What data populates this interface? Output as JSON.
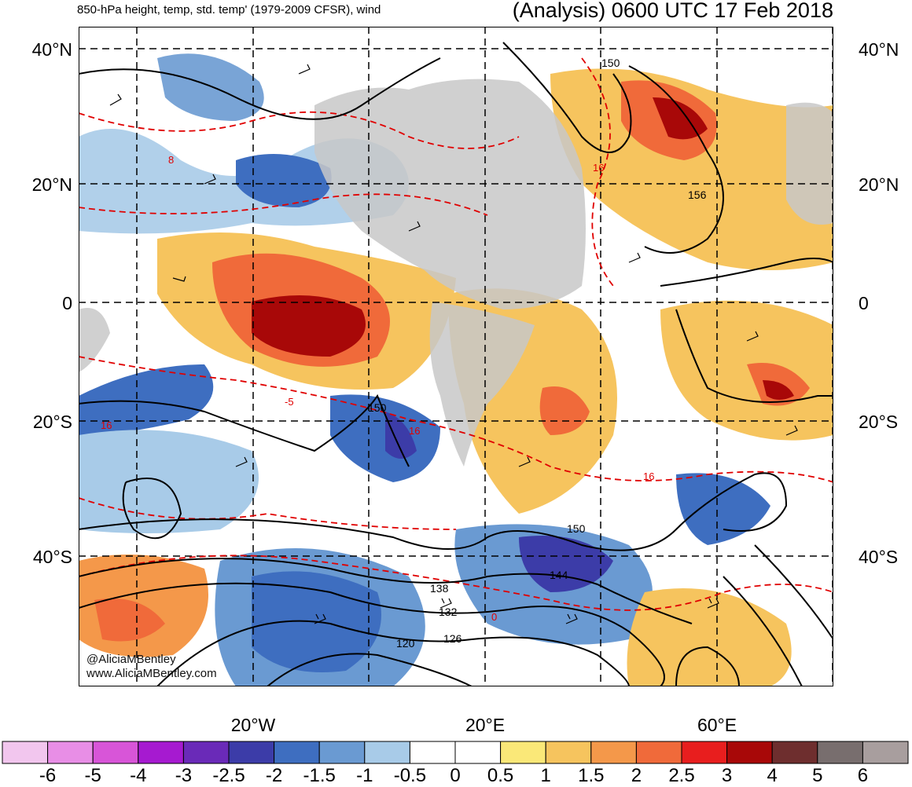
{
  "header": {
    "subtitle": "850-hPa height, temp, std. temp' (1979-2009 CFSR), wind",
    "title": "(Analysis) 0600 UTC 17 Feb 2018"
  },
  "lat_labels": [
    "40°N",
    "20°N",
    "0",
    "20°S",
    "40°S"
  ],
  "lon_labels": [
    "20°W",
    "20°E",
    "60°E"
  ],
  "height_contour_labels": [
    "150",
    "156",
    "150",
    "150",
    "144",
    "138",
    "132",
    "126",
    "120"
  ],
  "temp_contour_labels": [
    "8",
    "16",
    "16",
    "16",
    "16",
    "0",
    "-5"
  ],
  "credits": {
    "handle": "@AliciaMBentley",
    "site": "www.AliciaMBentley.com"
  },
  "colorbar": {
    "ticks": [
      "-6",
      "-5",
      "-4",
      "-3",
      "-2.5",
      "-2",
      "-1.5",
      "-1",
      "-0.5",
      "0",
      "0.5",
      "1",
      "1.5",
      "2",
      "2.5",
      "3",
      "4",
      "5",
      "6"
    ],
    "colors": [
      "#f2c6ee",
      "#e88ee6",
      "#d855d8",
      "#a61ad0",
      "#6a2ab8",
      "#3c3ca8",
      "#3e6ec0",
      "#6a9ad2",
      "#a8cbe8",
      "#ffffff",
      "#ffffff",
      "#fae878",
      "#f6c45e",
      "#f4984a",
      "#f06a3a",
      "#e81e1e",
      "#a80808",
      "#6e2e2e",
      "#786e6e",
      "#a89e9e"
    ]
  },
  "colors": {
    "land": "#c8c8c8",
    "contour_height": "#000000",
    "contour_temp": "#e00000"
  }
}
